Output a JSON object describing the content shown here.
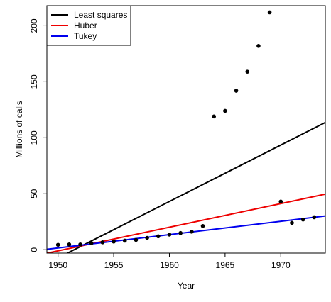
{
  "chart_data": {
    "type": "scatter",
    "title": "",
    "xlabel": "Year",
    "ylabel": "Millions of calls",
    "xlim": [
      1949,
      1974
    ],
    "ylim": [
      -3,
      218
    ],
    "xticks": [
      1950,
      1955,
      1960,
      1965,
      1970
    ],
    "yticks": [
      0,
      50,
      100,
      150,
      200
    ],
    "grid": false,
    "legend_position": "top-left",
    "points": {
      "x": [
        1950,
        1951,
        1952,
        1953,
        1954,
        1955,
        1956,
        1957,
        1958,
        1959,
        1960,
        1961,
        1962,
        1963,
        1964,
        1965,
        1966,
        1967,
        1968,
        1969,
        1970,
        1971,
        1972,
        1973
      ],
      "y": [
        4.4,
        4.7,
        4.7,
        5.9,
        6.6,
        7.3,
        8.1,
        8.8,
        10.6,
        12.0,
        13.5,
        14.9,
        16.1,
        21.2,
        119.0,
        124.0,
        142.0,
        159.0,
        182.0,
        212.0,
        43.0,
        24.0,
        27.0,
        29.0
      ],
      "color": "#000000"
    },
    "series": [
      {
        "name": "Least squares",
        "color": "#000000",
        "intercept_at_1950": -7.3,
        "slope": 5.04
      },
      {
        "name": "Huber",
        "color": "#ee0000",
        "intercept_at_1950": -1.0,
        "slope": 2.11
      },
      {
        "name": "Tukey",
        "color": "#0000ee",
        "intercept_at_1950": 1.6,
        "slope": 1.19
      }
    ]
  }
}
